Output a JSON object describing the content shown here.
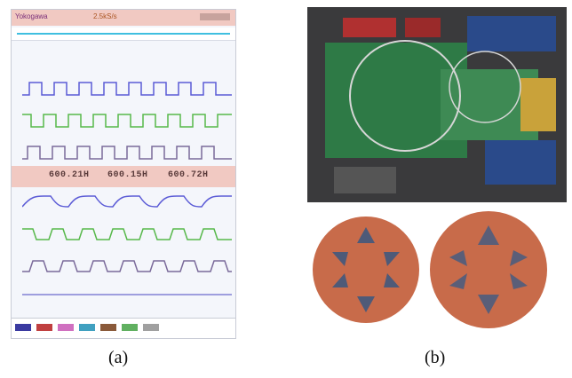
{
  "scope": {
    "brand": "Yokogawa",
    "header_value": "2.5kS/s",
    "measurements": [
      "600.21H",
      "600.15H",
      "600.72H"
    ],
    "channel_colors": [
      "#5b5bd6",
      "#56b84a",
      "#7a6a9a",
      "#5b5bd6",
      "#56b84a",
      "#7a6a9a"
    ],
    "legend_colors": [
      "#3a3aa0",
      "#c04040",
      "#d070c0",
      "#40a0c0",
      "#8a5a3a",
      "#60b060",
      "#a0a0a0"
    ]
  },
  "labels": {
    "a": "(a)",
    "b": "(b)"
  },
  "photo": {
    "board_color": "#2e7a46",
    "disc_color": "#c86b4a"
  }
}
